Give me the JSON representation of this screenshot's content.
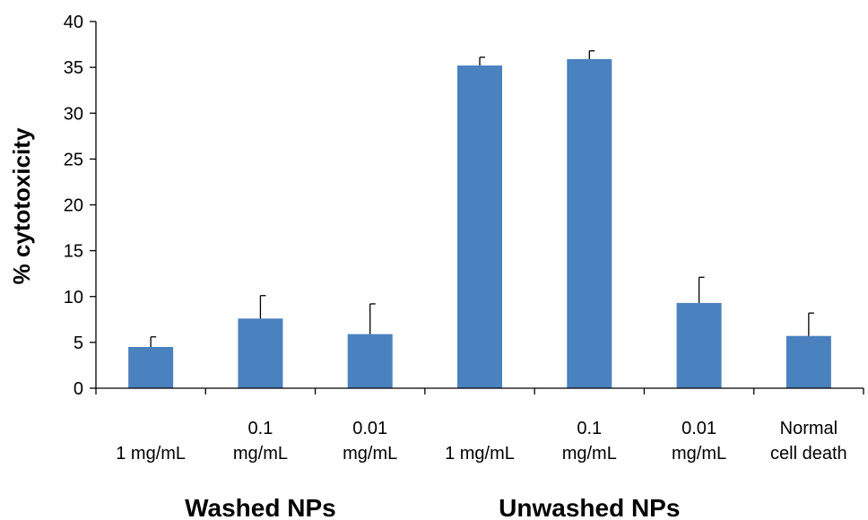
{
  "chart_data": {
    "type": "bar",
    "title": "",
    "xlabel": "",
    "ylabel": "% cytotoxicity",
    "ylim": [
      0,
      40
    ],
    "yticks": [
      0,
      5,
      10,
      15,
      20,
      25,
      30,
      35,
      40
    ],
    "grid": false,
    "legend": "none",
    "bar_color": "#4a81bf",
    "categories": [
      [
        "1 mg/mL"
      ],
      [
        "0.1",
        "mg/mL"
      ],
      [
        "0.01",
        "mg/mL"
      ],
      [
        "1 mg/mL"
      ],
      [
        "0.1",
        "mg/mL"
      ],
      [
        "0.01",
        "mg/mL"
      ],
      [
        "Normal",
        "cell death"
      ]
    ],
    "values": [
      4.5,
      7.6,
      5.9,
      35.2,
      35.9,
      9.3,
      5.7
    ],
    "error_upper": [
      1.1,
      2.5,
      3.3,
      0.9,
      0.9,
      2.8,
      2.5
    ],
    "groups": [
      {
        "label": "Washed NPs",
        "category_indices": [
          0,
          1,
          2
        ]
      },
      {
        "label": "Unwashed NPs",
        "category_indices": [
          3,
          4,
          5
        ]
      }
    ]
  }
}
